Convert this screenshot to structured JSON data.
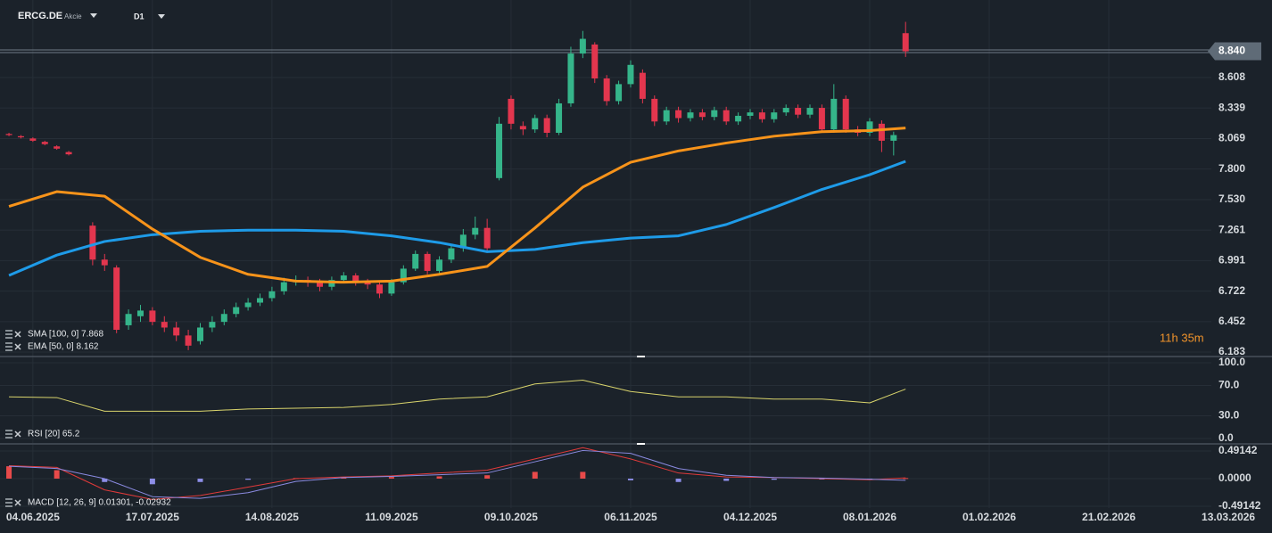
{
  "header": {
    "symbol": "ERCG.DE",
    "instrument_type": "Akcie",
    "timeframe": "D1"
  },
  "chart_data": [
    {
      "type": "candlestick",
      "annotation": "11h 35m",
      "legends": [
        "SMA [100, 0] 7.868",
        "EMA [50, 0] 8.162"
      ],
      "xlim": [
        -5.5,
        207.3
      ],
      "ylim": [
        6.144,
        9.293
      ],
      "yticks": [
        6.183,
        6.452,
        6.722,
        6.991,
        7.261,
        {
          "value": 7.53,
          "label": "7.530"
        },
        {
          "value": 7.8,
          "label": "7.800"
        },
        8.069,
        8.339,
        8.608,
        {
          "value": 8.84,
          "label": "8.840"
        }
      ],
      "grid": true,
      "up_color": "#35b58a",
      "down_color": "#e3364e",
      "x": [
        -4,
        -2,
        0,
        2,
        4,
        6,
        10,
        12,
        14,
        16,
        18,
        20,
        22,
        24,
        26,
        28,
        30,
        32,
        34,
        36,
        38,
        40,
        42,
        44,
        46,
        48,
        50,
        52,
        54,
        56,
        58,
        60,
        62,
        64,
        66,
        68,
        70,
        72,
        74,
        76,
        78,
        80,
        82,
        84,
        86,
        88,
        90,
        92,
        94,
        96,
        98,
        100,
        102,
        104,
        106,
        108,
        110,
        112,
        114,
        116,
        118,
        120,
        122,
        124,
        126,
        128,
        130,
        132,
        134,
        136,
        138,
        140,
        142,
        144,
        146
      ],
      "open": [
        8.11,
        8.09,
        8.07,
        8.04,
        8.0,
        7.95,
        7.3,
        7.0,
        6.93,
        6.42,
        6.5,
        6.55,
        6.45,
        6.4,
        6.33,
        6.28,
        6.4,
        6.45,
        6.52,
        6.58,
        6.62,
        6.66,
        6.72,
        6.8,
        6.82,
        6.8,
        6.76,
        6.82,
        6.86,
        6.8,
        6.78,
        6.7,
        6.8,
        6.92,
        7.05,
        6.9,
        7.0,
        7.1,
        7.22,
        7.28,
        7.72,
        8.42,
        8.18,
        8.15,
        8.25,
        8.12,
        8.38,
        8.82,
        8.9,
        8.6,
        8.4,
        8.55,
        8.65,
        8.42,
        8.22,
        8.32,
        8.25,
        8.3,
        8.26,
        8.32,
        8.22,
        8.27,
        8.3,
        8.24,
        8.3,
        8.34,
        8.28,
        8.34,
        8.15,
        8.42,
        8.15,
        8.12,
        8.2,
        8.05,
        9.0
      ],
      "high": [
        8.12,
        8.1,
        8.08,
        8.05,
        8.01,
        7.96,
        7.33,
        7.05,
        6.95,
        6.56,
        6.6,
        6.58,
        6.5,
        6.45,
        6.38,
        6.44,
        6.5,
        6.56,
        6.62,
        6.66,
        6.7,
        6.76,
        6.84,
        6.86,
        6.85,
        6.83,
        6.85,
        6.89,
        6.88,
        6.83,
        6.81,
        6.83,
        6.95,
        7.08,
        7.07,
        7.03,
        7.13,
        7.27,
        7.38,
        7.36,
        8.26,
        8.45,
        8.22,
        8.28,
        8.28,
        8.42,
        8.88,
        9.02,
        8.92,
        8.63,
        8.58,
        8.76,
        8.68,
        8.45,
        8.35,
        8.35,
        8.33,
        8.33,
        8.35,
        8.35,
        8.3,
        8.33,
        8.33,
        8.33,
        8.37,
        8.37,
        8.37,
        8.37,
        8.55,
        8.45,
        8.18,
        8.25,
        8.23,
        8.13,
        9.1
      ],
      "low": [
        8.09,
        8.07,
        8.04,
        8.01,
        7.97,
        7.92,
        6.95,
        6.9,
        6.35,
        6.38,
        6.45,
        6.42,
        6.36,
        6.28,
        6.2,
        6.25,
        6.36,
        6.42,
        6.49,
        6.55,
        6.59,
        6.63,
        6.69,
        6.77,
        6.76,
        6.72,
        6.73,
        6.79,
        6.77,
        6.74,
        6.66,
        6.68,
        6.78,
        6.9,
        6.87,
        6.88,
        6.97,
        7.07,
        7.18,
        7.06,
        7.7,
        8.15,
        8.1,
        8.12,
        8.08,
        8.1,
        8.35,
        8.78,
        8.56,
        8.36,
        8.37,
        8.52,
        8.38,
        8.18,
        8.19,
        8.21,
        8.22,
        8.23,
        8.23,
        8.19,
        8.19,
        8.24,
        8.21,
        8.21,
        8.27,
        8.25,
        8.25,
        8.12,
        8.12,
        8.12,
        8.09,
        8.09,
        7.95,
        7.92,
        8.79
      ],
      "close": [
        8.1,
        8.08,
        8.05,
        8.02,
        7.98,
        7.93,
        7.0,
        6.95,
        6.38,
        6.52,
        6.55,
        6.45,
        6.4,
        6.33,
        6.24,
        6.4,
        6.45,
        6.52,
        6.58,
        6.62,
        6.66,
        6.72,
        6.8,
        6.82,
        6.8,
        6.76,
        6.82,
        6.86,
        6.8,
        6.78,
        6.7,
        6.8,
        6.92,
        7.05,
        6.9,
        7.0,
        7.1,
        7.22,
        7.28,
        7.1,
        8.2,
        8.2,
        8.15,
        8.25,
        8.12,
        8.38,
        8.82,
        8.95,
        8.6,
        8.4,
        8.55,
        8.72,
        8.42,
        8.22,
        8.32,
        8.25,
        8.3,
        8.26,
        8.32,
        8.22,
        8.27,
        8.3,
        8.24,
        8.3,
        8.34,
        8.28,
        8.34,
        8.15,
        8.42,
        8.15,
        8.12,
        8.22,
        8.05,
        8.1,
        8.84
      ],
      "series": [
        {
          "color": "#1e9be8",
          "x": [
            -4,
            4,
            12,
            20,
            28,
            36,
            44,
            52,
            60,
            68,
            76,
            84,
            92,
            100,
            108,
            116,
            124,
            132,
            140,
            146
          ],
          "values": [
            6.86,
            7.04,
            7.16,
            7.22,
            7.25,
            7.26,
            7.26,
            7.25,
            7.21,
            7.15,
            7.07,
            7.09,
            7.15,
            7.19,
            7.21,
            7.31,
            7.46,
            7.62,
            7.75,
            7.868
          ]
        },
        {
          "color": "#f7931a",
          "x": [
            -4,
            4,
            12,
            20,
            28,
            36,
            44,
            52,
            60,
            68,
            76,
            84,
            92,
            100,
            108,
            116,
            124,
            132,
            140,
            146
          ],
          "values": [
            7.47,
            7.6,
            7.56,
            7.27,
            7.02,
            6.87,
            6.81,
            6.8,
            6.81,
            6.87,
            6.94,
            7.28,
            7.64,
            7.86,
            7.96,
            8.03,
            8.09,
            8.13,
            8.14,
            8.162
          ]
        }
      ]
    },
    {
      "type": "line",
      "legend": "RSI [20] 65.2",
      "xlim": [
        -5.5,
        207.3
      ],
      "ylim": [
        -5.9,
        107
      ],
      "yticks": [
        {
          "value": 0,
          "label": "0.0"
        },
        {
          "value": 30,
          "label": "30.0"
        },
        {
          "value": 70,
          "label": "70.0"
        },
        {
          "value": 100,
          "label": "100.0"
        }
      ],
      "grid": true,
      "series": [
        {
          "color": "#d9d46c",
          "x": [
            -4,
            4,
            12,
            20,
            28,
            36,
            44,
            52,
            60,
            68,
            76,
            84,
            92,
            100,
            108,
            116,
            124,
            132,
            140,
            146
          ],
          "values": [
            55,
            54,
            36,
            36,
            36,
            39,
            40,
            41,
            45,
            52,
            55,
            72,
            77,
            62,
            55,
            55,
            52,
            52,
            47,
            65.2
          ]
        }
      ]
    },
    {
      "type": "macd",
      "legend": "MACD [12, 26, 9] 0.01301, -0.02932",
      "xlim": [
        -5.5,
        207.3
      ],
      "ylim": [
        -0.523,
        0.602
      ],
      "yticks": [
        -0.49142,
        {
          "value": 0,
          "label": "0.0000"
        },
        0.49142
      ],
      "xticks": [
        {
          "value": 0,
          "label": "04.06.2025"
        },
        {
          "value": 20,
          "label": "17.07.2025"
        },
        {
          "value": 40,
          "label": "14.08.2025"
        },
        {
          "value": 60,
          "label": "11.09.2025"
        },
        {
          "value": 80,
          "label": "09.10.2025"
        },
        {
          "value": 100,
          "label": "06.11.2025"
        },
        {
          "value": 120,
          "label": "04.12.2025"
        },
        {
          "value": 140,
          "label": "08.01.2026"
        },
        {
          "value": 160,
          "label": "01.02.2026"
        },
        {
          "value": 180,
          "label": "21.02.2026"
        },
        {
          "value": 200,
          "label": "13.03.2026"
        }
      ],
      "grid": true,
      "x": [
        -4,
        4,
        12,
        20,
        28,
        36,
        44,
        52,
        60,
        68,
        76,
        84,
        92,
        100,
        108,
        116,
        124,
        132,
        140,
        146
      ],
      "histogram": {
        "up_color": "#e84a4a",
        "down_color": "#8d8ee8",
        "values": [
          0.22,
          0.15,
          -0.06,
          -0.1,
          -0.06,
          -0.02,
          0.01,
          0.03,
          0.03,
          0.04,
          0.06,
          0.12,
          0.12,
          -0.03,
          -0.06,
          -0.04,
          -0.02,
          -0.01,
          -0.02,
          0.01
        ]
      },
      "series": [
        {
          "color": "#e03a3a",
          "values": [
            0.23,
            0.2,
            -0.2,
            -0.37,
            -0.3,
            -0.15,
            0.0,
            0.03,
            0.05,
            0.1,
            0.15,
            0.35,
            0.55,
            0.35,
            0.1,
            0.03,
            0.02,
            0.0,
            -0.02,
            0.01301
          ]
        },
        {
          "color": "#8a8ae0",
          "values": [
            0.22,
            0.18,
            0.0,
            -0.32,
            -0.35,
            -0.25,
            -0.05,
            0.02,
            0.04,
            0.07,
            0.1,
            0.3,
            0.5,
            0.45,
            0.18,
            0.06,
            0.02,
            0.01,
            -0.01,
            -0.02932
          ]
        }
      ]
    }
  ]
}
